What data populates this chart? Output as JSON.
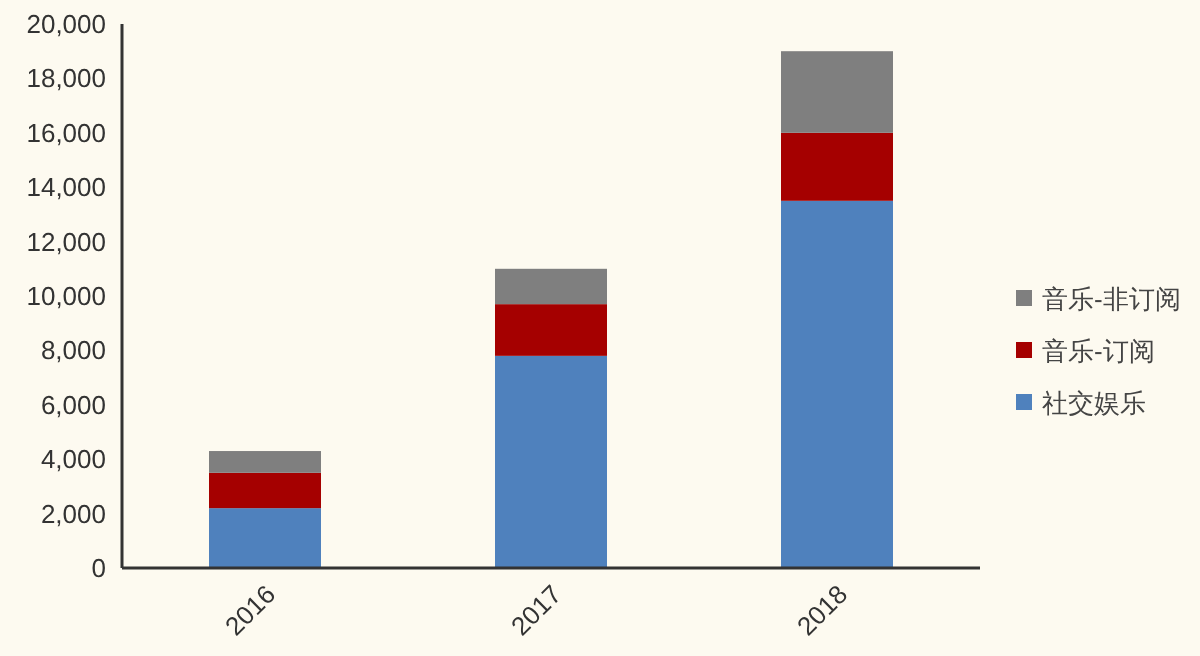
{
  "chart_data": {
    "type": "bar",
    "stacked": true,
    "categories": [
      "2016",
      "2017",
      "2018"
    ],
    "series": [
      {
        "name": "社交娱乐",
        "color": "#4f81bd",
        "values": [
          2200,
          7800,
          13500
        ]
      },
      {
        "name": "音乐-订阅",
        "color": "#a50000",
        "values": [
          1300,
          1900,
          2500
        ]
      },
      {
        "name": "音乐-非订阅",
        "color": "#7f7f7f",
        "values": [
          800,
          1300,
          3000
        ]
      }
    ],
    "ylim": [
      0,
      20000
    ],
    "yticks": [
      {
        "value": 0,
        "label": "0"
      },
      {
        "value": 2000,
        "label": "2,000"
      },
      {
        "value": 4000,
        "label": "4,000"
      },
      {
        "value": 6000,
        "label": "6,000"
      },
      {
        "value": 8000,
        "label": "8,000"
      },
      {
        "value": 10000,
        "label": "10,000"
      },
      {
        "value": 12000,
        "label": "12,000"
      },
      {
        "value": 14000,
        "label": "14,000"
      },
      {
        "value": 16000,
        "label": "16,000"
      },
      {
        "value": 18000,
        "label": "18,000"
      },
      {
        "value": 20000,
        "label": "20,000"
      }
    ],
    "grid": false,
    "legend": "right"
  }
}
